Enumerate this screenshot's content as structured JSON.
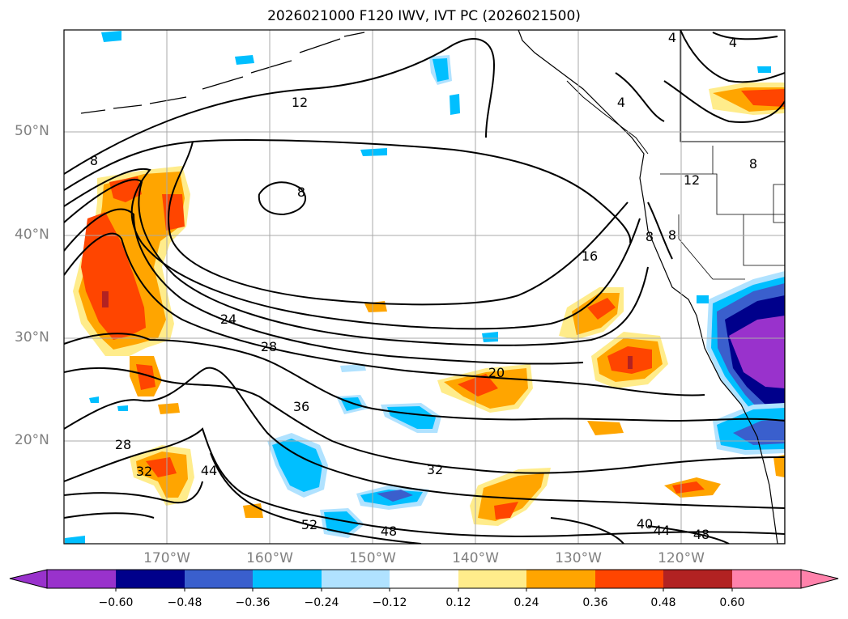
{
  "title": "2026021000 F120 IWV, IVT PC (2026021500)",
  "lat_labels": [
    "50°N",
    "40°N",
    "30°N",
    "20°N"
  ],
  "lon_labels": [
    "170°W",
    "160°W",
    "150°W",
    "140°W",
    "130°W",
    "120°W"
  ],
  "contour_labels": [
    "4",
    "4",
    "4",
    "8",
    "8",
    "8",
    "8",
    "8",
    "12",
    "12",
    "16",
    "20",
    "24",
    "28",
    "28",
    "32",
    "32",
    "36",
    "40",
    "44",
    "44",
    "48",
    "48",
    "52"
  ],
  "colorbar": {
    "ticks": [
      "−0.60",
      "−0.48",
      "−0.36",
      "−0.24",
      "−0.12",
      "0.12",
      "0.24",
      "0.36",
      "0.48",
      "0.60"
    ],
    "colors": [
      "#9932cc",
      "#00008b",
      "#3a5fcd",
      "#00bfff",
      "#b0e2ff",
      "#ffffff",
      "#ffec8b",
      "#ffa500",
      "#ff4500",
      "#b22222",
      "#ff82ab"
    ]
  },
  "colors": {
    "negative_anomaly": "#00bfff",
    "positive_anomaly": "#ffa500",
    "contour": "#000000",
    "grid": "#a9a9a9",
    "axis_labels": "#808080"
  }
}
